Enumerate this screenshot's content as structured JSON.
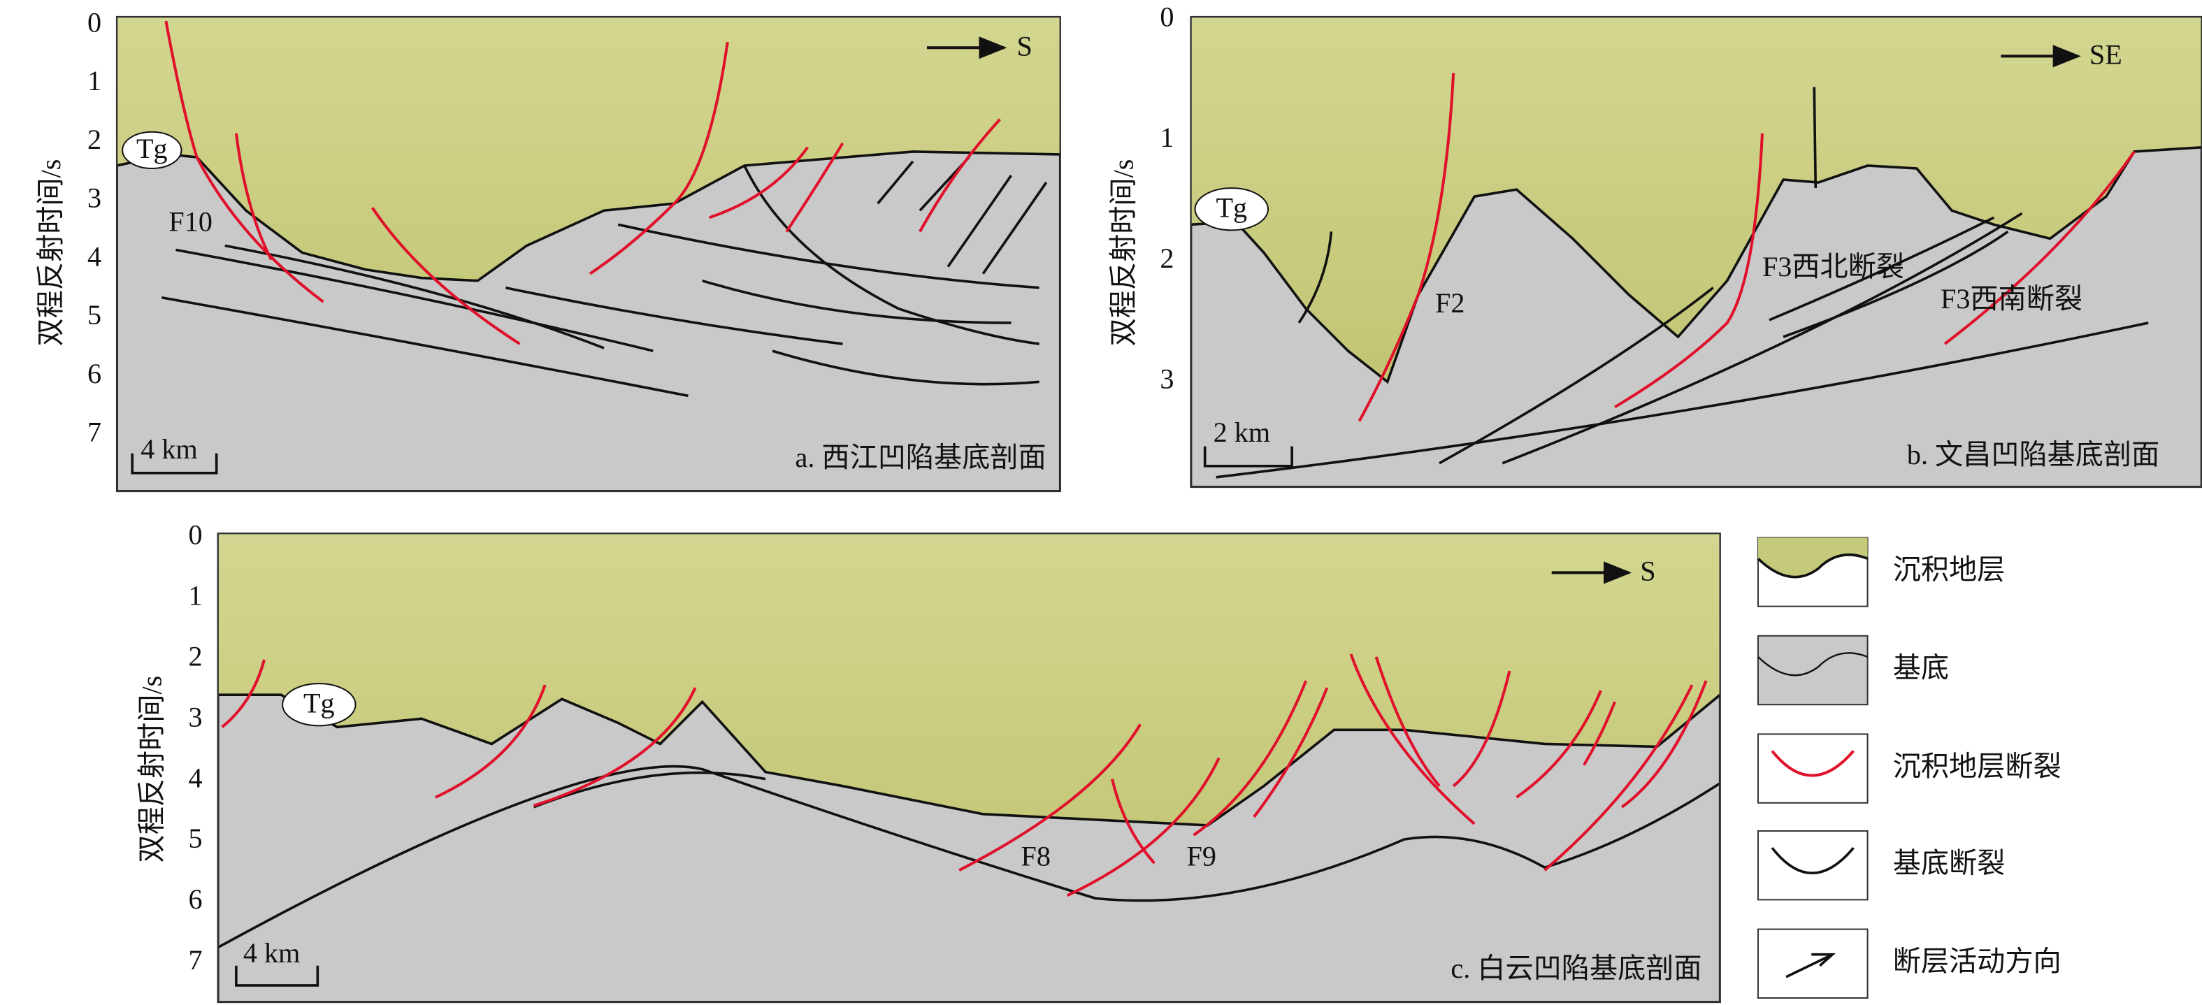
{
  "panels": [
    {
      "axis_label": "双程反射时间/s",
      "ticks": [
        0,
        1,
        2,
        3,
        4,
        5,
        6,
        7
      ],
      "direction": "S",
      "tg": "Tg",
      "faults": [
        "F10"
      ],
      "scale": "4 km",
      "caption": "a. 西江凹陷基底剖面"
    },
    {
      "axis_label": "双程反射时间/s",
      "ticks": [
        0,
        1,
        2,
        3
      ],
      "direction": "SE",
      "tg": "Tg",
      "faults": [
        "F2",
        "F3西北断裂",
        "F3西南断裂"
      ],
      "scale": "2 km",
      "caption": "b. 文昌凹陷基底剖面"
    },
    {
      "axis_label": "双程反射时间/s",
      "ticks": [
        0,
        1,
        2,
        3,
        4,
        5,
        6,
        7
      ],
      "direction": "S",
      "tg": "Tg",
      "faults": [
        "F8",
        "F9"
      ],
      "scale": "4 km",
      "caption": "c. 白云凹陷基底剖面"
    }
  ],
  "legend": [
    "沉积地层",
    "基底",
    "沉积地层断裂",
    "基底断裂",
    "断层活动方向"
  ]
}
